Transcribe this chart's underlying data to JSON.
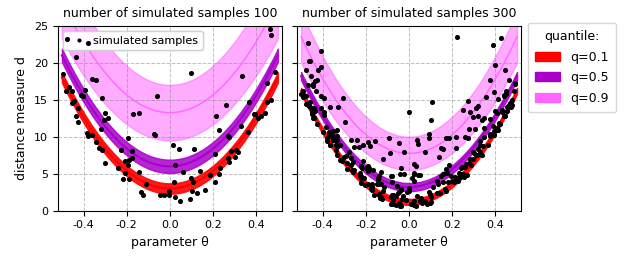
{
  "title1": "number of simulated samples 100",
  "title2": "number of simulated samples 300",
  "xlabel": "parameter θ",
  "ylabel": "distance measure d",
  "xlim": [
    -0.52,
    0.52
  ],
  "ylim": [
    0,
    25
  ],
  "yticks": [
    0,
    5,
    10,
    15,
    20,
    25
  ],
  "xticks": [
    -0.4,
    -0.2,
    0.0,
    0.2,
    0.4
  ],
  "color_q01": "#ff0000",
  "color_q05": "#aa00cc",
  "color_q09": "#ff66ff",
  "n_samples1": 100,
  "n_samples2": 300,
  "legend_quantile_title": "quantile:",
  "legend_q01": "q=0.1",
  "legend_q05": "q=0.5",
  "legend_q09": "q=0.9",
  "q01_n100_a": 60,
  "q01_n100_b": 3.0,
  "q05_n100_a": 60,
  "q05_n100_b": 6.0,
  "q09_lo_n100_a": 55,
  "q09_lo_n100_b": 9.5,
  "q09_hi_n100_a": 65,
  "q09_hi_n100_b": 17.0,
  "q01_n300_a": 60,
  "q01_n300_b": 1.2,
  "q05_n300_a": 60,
  "q05_n300_b": 3.2,
  "q09_lo_n300_a": 58,
  "q09_lo_n300_b": 5.5,
  "q09_hi_n300_a": 68,
  "q09_hi_n300_b": 10.0,
  "band_q01_half_n100": 0.7,
  "band_q05_half_n100": 0.9,
  "band_q01_half_n300": 0.4,
  "band_q05_half_n300": 0.55
}
